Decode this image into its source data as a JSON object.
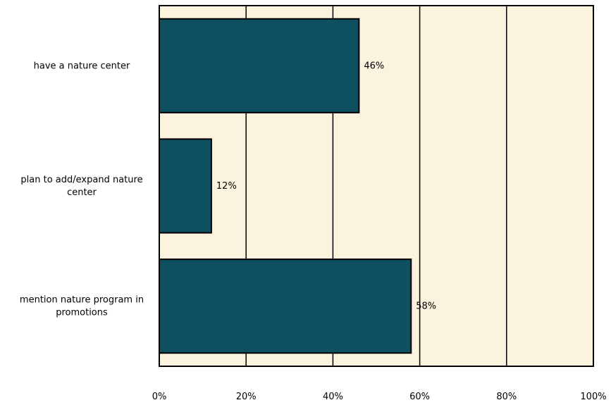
{
  "chart_data": {
    "type": "bar",
    "orientation": "horizontal",
    "title": "",
    "xlabel": "",
    "ylabel": "",
    "categories": [
      "have a nature center",
      "plan to add/expand nature center",
      "mention nature program in promotions"
    ],
    "category_lines": [
      [
        "have a nature center"
      ],
      [
        "plan to add/expand nature",
        "center"
      ],
      [
        "mention nature program in",
        "promotions"
      ]
    ],
    "values": [
      46,
      12,
      58
    ],
    "value_labels": [
      "46%",
      "12%",
      "58%"
    ],
    "xlim": [
      0,
      100
    ],
    "x_ticks": [
      0,
      20,
      40,
      60,
      80,
      100
    ],
    "x_tick_labels": [
      "0%",
      "20%",
      "40%",
      "60%",
      "80%",
      "100%"
    ],
    "grid": true,
    "legend": "none",
    "colors": {
      "bar_fill": "#0e4f60",
      "bar_stroke": "#000000",
      "plot_background": "#fbf3de",
      "gridline": "#000000",
      "page_background": "#ffffff"
    }
  }
}
